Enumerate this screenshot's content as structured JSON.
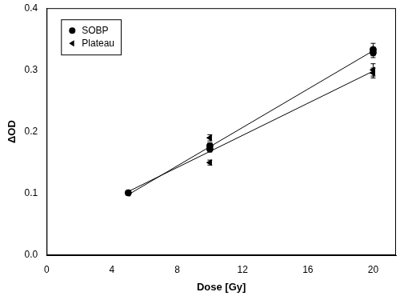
{
  "chart_data": {
    "type": "scatter",
    "x_label": "Dose [Gy]",
    "y_label": "ΔOD",
    "xlim": [
      0,
      21.4
    ],
    "xticks": [
      0,
      4,
      8,
      12,
      16,
      20
    ],
    "ylim": [
      0,
      0.4
    ],
    "yticks": [
      {
        "value": 0,
        "label": "0.0"
      },
      0.1,
      0.2,
      0.3,
      0.4
    ],
    "grid": false,
    "legend": "upper left",
    "series": [
      {
        "name": "SOBP",
        "color": "#000000",
        "marker": "circle",
        "x": [
          5,
          10,
          10,
          20,
          20
        ],
        "values": [
          0.101,
          0.177,
          0.172,
          0.333,
          0.328
        ],
        "errors": [
          0.003,
          0.005,
          0.005,
          0.01,
          0.008
        ],
        "fit": {
          "x": [
            5,
            20
          ],
          "values": [
            0.098,
            0.331
          ],
          "line_style": "solid"
        }
      },
      {
        "name": "Plateau",
        "color": "#000000",
        "marker": "triangle-left",
        "x": [
          5,
          10,
          10,
          20,
          20
        ],
        "values": [
          0.1,
          0.19,
          0.15,
          0.3,
          0.295
        ],
        "errors": [
          0.003,
          0.005,
          0.004,
          0.01,
          0.008
        ],
        "fit": {
          "x": [
            5,
            20
          ],
          "values": [
            0.103,
            0.298
          ],
          "line_style": "solid"
        }
      }
    ]
  }
}
